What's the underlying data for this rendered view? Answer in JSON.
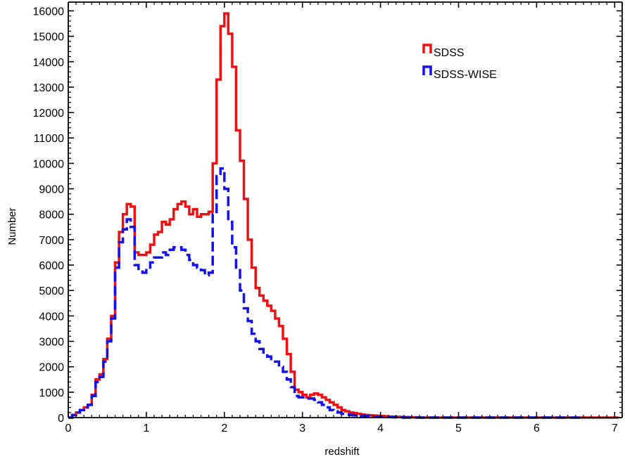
{
  "chart_data": {
    "type": "step",
    "xlabel": "redshift",
    "ylabel": "Number",
    "xlim": [
      0,
      7.1
    ],
    "ylim": [
      0,
      16200
    ],
    "xticks": [
      "0",
      "1",
      "2",
      "3",
      "4",
      "5",
      "6",
      "7"
    ],
    "yticks": [
      "0",
      "1000",
      "2000",
      "3000",
      "4000",
      "5000",
      "6000",
      "7000",
      "8000",
      "9000",
      "10000",
      "11000",
      "12000",
      "13000",
      "14000",
      "15000",
      "16000"
    ],
    "bin_width": 0.05,
    "legend": {
      "placement": "top-right"
    },
    "series": [
      {
        "name": "SDSS",
        "color": "#ee1111",
        "dash": "solid",
        "bin_starts": [
          0.0,
          0.05,
          0.1,
          0.15,
          0.2,
          0.25,
          0.3,
          0.35,
          0.4,
          0.45,
          0.5,
          0.55,
          0.6,
          0.65,
          0.7,
          0.75,
          0.8,
          0.85,
          0.9,
          0.95,
          1.0,
          1.05,
          1.1,
          1.15,
          1.2,
          1.25,
          1.3,
          1.35,
          1.4,
          1.45,
          1.5,
          1.55,
          1.6,
          1.65,
          1.7,
          1.75,
          1.8,
          1.85,
          1.9,
          1.95,
          2.0,
          2.05,
          2.1,
          2.15,
          2.2,
          2.25,
          2.3,
          2.35,
          2.4,
          2.45,
          2.5,
          2.55,
          2.6,
          2.65,
          2.7,
          2.75,
          2.8,
          2.85,
          2.9,
          2.95,
          3.0,
          3.05,
          3.1,
          3.15,
          3.2,
          3.25,
          3.3,
          3.35,
          3.4,
          3.45,
          3.5,
          3.55,
          3.6,
          3.65,
          3.7,
          3.75,
          3.8,
          3.85,
          3.9,
          3.95,
          4.0,
          4.05,
          4.1,
          4.15,
          4.2,
          4.25,
          4.3,
          4.35,
          4.4,
          4.45,
          4.5,
          4.6,
          4.8,
          5.0,
          5.5,
          6.0,
          6.5,
          7.0
        ],
        "values": [
          0,
          100,
          200,
          300,
          400,
          500,
          900,
          1500,
          1700,
          2300,
          3100,
          4000,
          6100,
          7300,
          8000,
          8400,
          8300,
          6500,
          6400,
          6400,
          6500,
          6800,
          7200,
          7300,
          7700,
          7600,
          7800,
          8200,
          8400,
          8500,
          8300,
          8000,
          8200,
          7900,
          8000,
          8000,
          8100,
          10000,
          13300,
          15400,
          15900,
          15100,
          13800,
          11300,
          10100,
          8600,
          7000,
          5900,
          5100,
          4800,
          4600,
          4400,
          4200,
          3900,
          3600,
          3100,
          2500,
          1800,
          1100,
          1000,
          900,
          800,
          900,
          950,
          900,
          800,
          700,
          600,
          500,
          400,
          300,
          250,
          200,
          180,
          150,
          120,
          100,
          90,
          80,
          70,
          60,
          50,
          40,
          35,
          30,
          25,
          20,
          15,
          10,
          5,
          0,
          0,
          0,
          0,
          0,
          0,
          0,
          0
        ]
      },
      {
        "name": "SDSS-WISE",
        "color": "#1111ee",
        "dash": "dashed",
        "bin_starts": [
          0.0,
          0.05,
          0.1,
          0.15,
          0.2,
          0.25,
          0.3,
          0.35,
          0.4,
          0.45,
          0.5,
          0.55,
          0.6,
          0.65,
          0.7,
          0.75,
          0.8,
          0.85,
          0.9,
          0.95,
          1.0,
          1.05,
          1.1,
          1.15,
          1.2,
          1.25,
          1.3,
          1.35,
          1.4,
          1.45,
          1.5,
          1.55,
          1.6,
          1.65,
          1.7,
          1.75,
          1.8,
          1.85,
          1.9,
          1.95,
          2.0,
          2.05,
          2.1,
          2.15,
          2.2,
          2.25,
          2.3,
          2.35,
          2.4,
          2.45,
          2.5,
          2.55,
          2.6,
          2.65,
          2.7,
          2.75,
          2.8,
          2.85,
          2.9,
          2.95,
          3.0,
          3.05,
          3.1,
          3.15,
          3.2,
          3.25,
          3.3,
          3.35,
          3.4,
          3.45,
          3.5,
          3.55,
          3.6,
          3.65,
          3.7,
          3.75,
          3.8,
          3.85,
          3.9,
          3.95,
          4.0,
          4.05,
          4.1,
          4.15,
          4.2,
          4.25,
          4.3,
          4.35,
          4.4,
          4.45,
          4.5,
          4.6,
          4.8,
          5.0,
          5.5,
          6.0,
          6.5,
          7.0
        ],
        "values": [
          0,
          100,
          200,
          300,
          400,
          500,
          850,
          1400,
          1600,
          2200,
          3000,
          3900,
          5900,
          6900,
          7400,
          7800,
          7500,
          6000,
          5800,
          5700,
          5800,
          6100,
          6300,
          6300,
          6500,
          6400,
          6600,
          6700,
          6700,
          6600,
          6400,
          6200,
          6000,
          5900,
          5800,
          5600,
          5700,
          8000,
          9500,
          9800,
          9000,
          7700,
          6700,
          5800,
          5000,
          4300,
          3800,
          3300,
          3000,
          2700,
          2500,
          2400,
          2300,
          2200,
          2000,
          1800,
          1500,
          1200,
          850,
          800,
          800,
          750,
          750,
          700,
          600,
          500,
          400,
          300,
          250,
          200,
          150,
          120,
          100,
          90,
          80,
          70,
          60,
          50,
          40,
          35,
          30,
          25,
          20,
          15,
          10,
          5,
          0,
          0,
          0,
          0,
          0,
          0,
          0,
          0,
          0,
          0,
          0
        ]
      }
    ]
  }
}
